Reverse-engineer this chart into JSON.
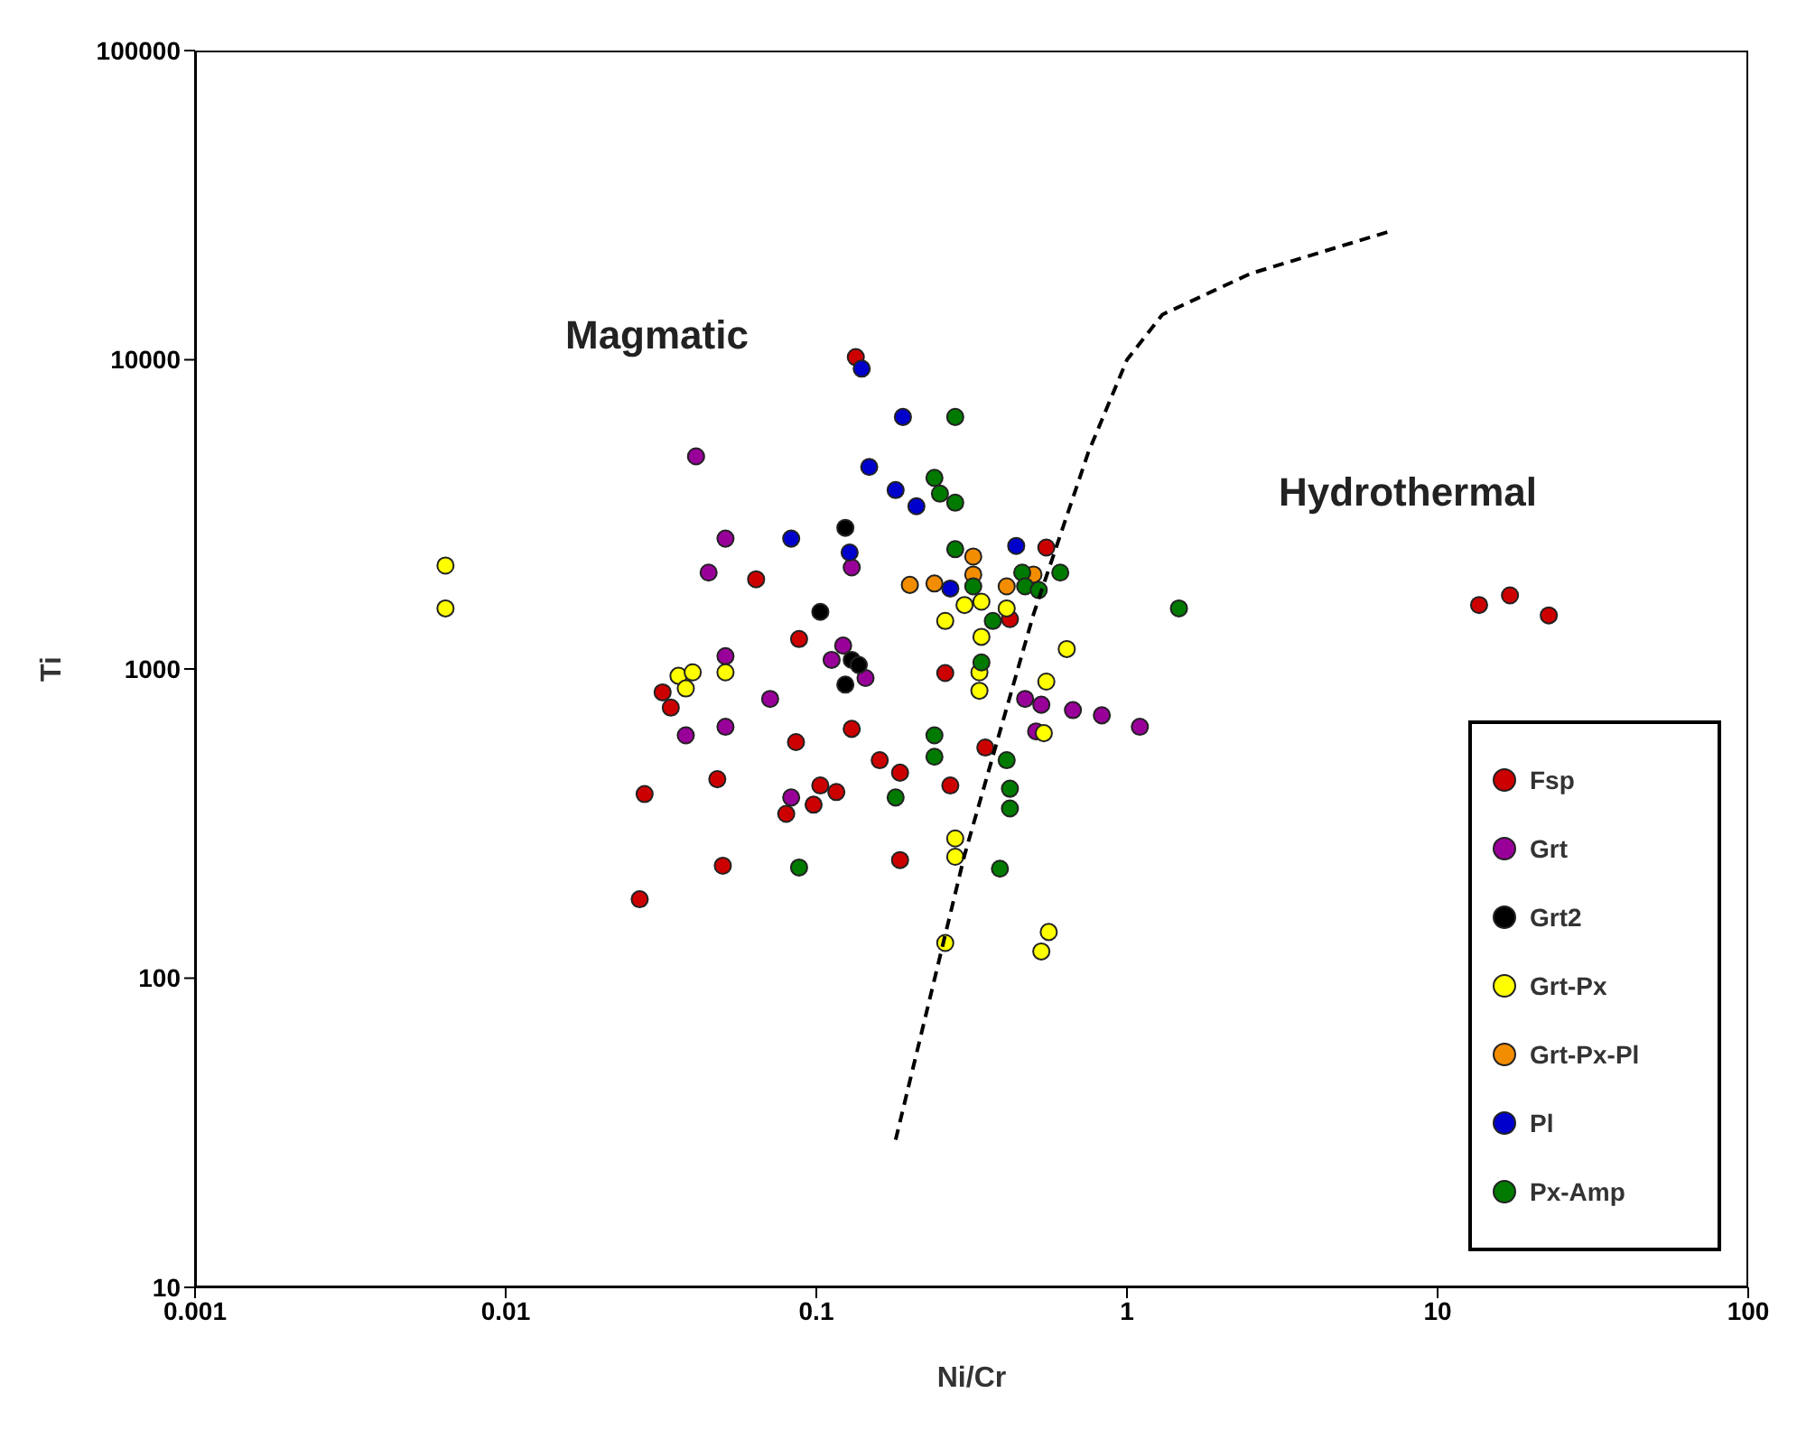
{
  "chart_data": {
    "type": "scatter",
    "xlabel": "Ni/Cr",
    "ylabel": "Ti",
    "log": "xy",
    "grid": false,
    "legend": "bottom right",
    "marker": "circle",
    "xlim": [
      0.001,
      100
    ],
    "xticks": [
      0.001,
      0.01,
      0.1,
      1,
      10,
      100
    ],
    "ylim": [
      10,
      100000
    ],
    "yticks": [
      10,
      100,
      1000,
      10000,
      100000
    ],
    "annotations": [
      "Magmatic",
      "Hydrothermal"
    ],
    "series": [
      {
        "name": "Fsp",
        "color": "#cc0000",
        "x": [
          0.134,
          0.55,
          0.064,
          0.42,
          0.088,
          0.032,
          0.034,
          0.048,
          0.028,
          0.05,
          0.027,
          0.26,
          0.086,
          0.13,
          0.16,
          0.186,
          0.103,
          0.116,
          0.098,
          0.08,
          0.27,
          0.35,
          0.186,
          13.6,
          17.1,
          22.8
        ],
        "values": [
          10200,
          2470,
          1950,
          1450,
          1250,
          840,
          750,
          440,
          394,
          231,
          180,
          970,
          580,
          640,
          507,
          462,
          420,
          400,
          364,
          340,
          420,
          557,
          241,
          1610,
          1730,
          1490
        ]
      },
      {
        "name": "Grt",
        "color": "#990099",
        "x": [
          0.041,
          0.051,
          0.045,
          0.051,
          0.071,
          0.051,
          0.038,
          0.13,
          0.112,
          0.144,
          0.122,
          0.083,
          0.47,
          0.53,
          0.67,
          0.83,
          1.1,
          0.51
        ],
        "values": [
          4870,
          2640,
          2050,
          1100,
          800,
          650,
          610,
          2130,
          1070,
          935,
          1190,
          384,
          800,
          766,
          736,
          708,
          650,
          628
        ]
      },
      {
        "name": "Grt2",
        "color": "#000000",
        "x": [
          0.124,
          0.103,
          0.13,
          0.124,
          0.137
        ],
        "values": [
          2860,
          1530,
          1070,
          890,
          1030
        ]
      },
      {
        "name": "Grt-Px",
        "color": "#ffff00",
        "x": [
          0.0064,
          0.0064,
          0.036,
          0.04,
          0.038,
          0.051,
          0.26,
          0.3,
          0.34,
          0.41,
          0.34,
          0.335,
          0.335,
          0.64,
          0.55,
          0.54,
          0.28,
          0.28,
          0.26,
          0.56,
          0.53
        ],
        "values": [
          2160,
          1570,
          950,
          975,
          865,
          975,
          1430,
          1610,
          1650,
          1570,
          1270,
          975,
          850,
          1160,
          910,
          620,
          283,
          247,
          130,
          141,
          122
        ]
      },
      {
        "name": "Grt-Px-Pl",
        "color": "#f28c00",
        "x": [
          0.2,
          0.24,
          0.32,
          0.32,
          0.41,
          0.5
        ],
        "values": [
          1870,
          1890,
          2310,
          2020,
          1850,
          2020
        ]
      },
      {
        "name": "Pl",
        "color": "#0000cc",
        "x": [
          0.14,
          0.19,
          0.148,
          0.18,
          0.21,
          0.083,
          0.128,
          0.44,
          0.27
        ],
        "values": [
          9360,
          6530,
          4500,
          3790,
          3360,
          2640,
          2380,
          2500,
          1820
        ]
      },
      {
        "name": "Px-Amp",
        "color": "#007a00",
        "x": [
          0.28,
          0.24,
          0.25,
          0.28,
          0.28,
          0.32,
          0.37,
          0.46,
          0.47,
          0.52,
          0.61,
          0.34,
          0.24,
          0.24,
          0.18,
          0.41,
          0.42,
          0.42,
          0.088,
          0.39,
          1.47
        ],
        "values": [
          6530,
          4150,
          3690,
          3450,
          2440,
          1850,
          1430,
          2050,
          1850,
          1800,
          2050,
          1050,
          610,
          520,
          384,
          507,
          410,
          354,
          228,
          226,
          1570
        ]
      },
      {
        "type": "line",
        "color": "#000000",
        "line_style": "dashed",
        "marker": "none",
        "x": [
          0.18,
          0.3,
          0.5,
          0.75,
          1.0,
          1.3,
          2.5,
          7
        ],
        "values": [
          30,
          250,
          1500,
          5000,
          10000,
          14000,
          19000,
          26000
        ]
      }
    ]
  }
}
